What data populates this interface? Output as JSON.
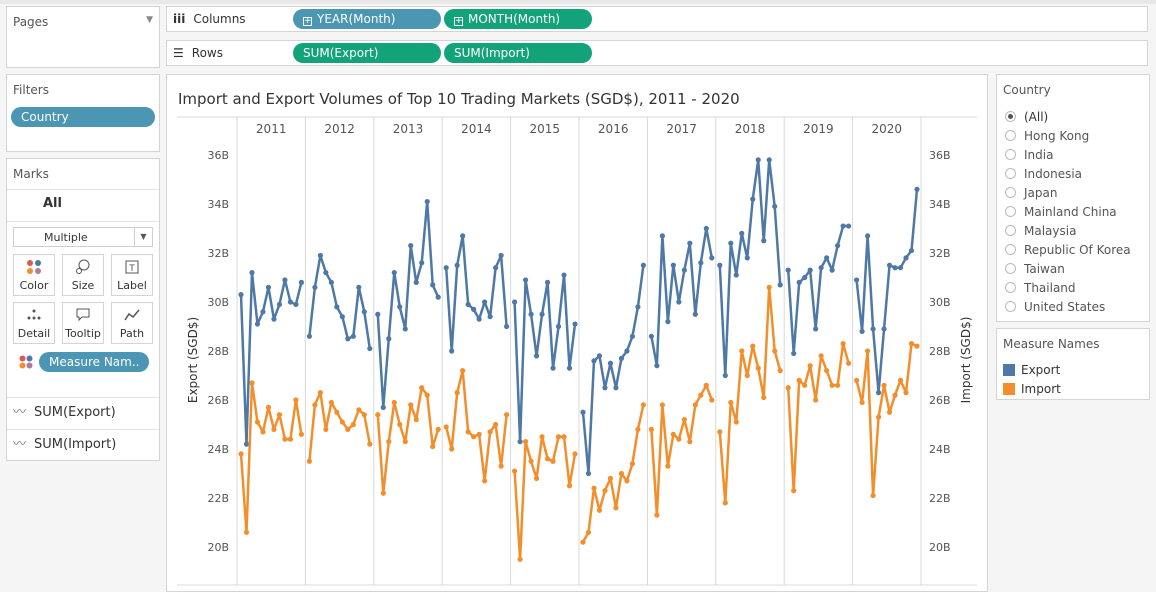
{
  "pages": {
    "title": "Pages"
  },
  "filters": {
    "title": "Filters",
    "pill": "Country"
  },
  "marks": {
    "title": "Marks",
    "all": "All",
    "mark_type": "Multiple",
    "buttons": [
      {
        "label": "Color",
        "icon": "color-dots-icon"
      },
      {
        "label": "Size",
        "icon": "size-icon"
      },
      {
        "label": "Label",
        "icon": "label-icon"
      },
      {
        "label": "Detail",
        "icon": "detail-icon"
      },
      {
        "label": "Tooltip",
        "icon": "tooltip-icon"
      },
      {
        "label": "Path",
        "icon": "path-icon"
      }
    ],
    "color_pill": "Measure Nam..",
    "measures": [
      "SUM(Export)",
      "SUM(Import)"
    ]
  },
  "columns": {
    "label": "Columns",
    "pills": [
      "YEAR(Month)",
      "MONTH(Month)"
    ]
  },
  "rows": {
    "label": "Rows",
    "pills": [
      "SUM(Export)",
      "SUM(Import)"
    ]
  },
  "country_filter": {
    "title": "Country",
    "options": [
      "(All)",
      "Hong Kong",
      "India",
      "Indonesia",
      "Japan",
      "Mainland China",
      "Malaysia",
      "Republic Of Korea",
      "Taiwan",
      "Thailand",
      "United States"
    ],
    "selected": "(All)"
  },
  "legend": {
    "title": "Measure Names",
    "items": [
      {
        "label": "Export",
        "color": "#4e79a7"
      },
      {
        "label": "Import",
        "color": "#f28e2b"
      }
    ]
  },
  "chart_data": {
    "type": "line",
    "title": "Import and Export Volumes of Top 10 Trading Markets (SGD$), 2011 - 2020",
    "ylabel_left": "Export (SGD$)",
    "ylabel_right": "Import (SGD$)",
    "y_ticks": [
      "20B",
      "22B",
      "24B",
      "26B",
      "28B",
      "30B",
      "32B",
      "34B",
      "36B"
    ],
    "ylim_billions": [
      19,
      37
    ],
    "years": [
      "2011",
      "2012",
      "2013",
      "2014",
      "2015",
      "2016",
      "2017",
      "2018",
      "2019",
      "2020"
    ],
    "series": [
      {
        "name": "Export",
        "color": "#4e79a7",
        "values_by_year": [
          [
            30.3,
            24.2,
            31.2,
            29.1,
            29.6,
            30.6,
            29.3,
            29.9,
            30.9,
            30.0,
            29.9,
            30.8
          ],
          [
            28.6,
            30.6,
            31.9,
            31.2,
            30.8,
            29.8,
            29.4,
            28.5,
            28.6,
            30.6,
            29.6,
            28.1
          ],
          [
            29.5,
            25.7,
            28.5,
            31.2,
            29.8,
            28.9,
            32.3,
            30.8,
            31.6,
            34.1,
            30.7,
            30.2
          ],
          [
            31.4,
            28.0,
            31.5,
            32.7,
            29.9,
            29.7,
            29.3,
            30.0,
            29.4,
            31.4,
            31.9,
            29.0
          ],
          [
            30.0,
            24.3,
            30.9,
            29.5,
            27.8,
            29.5,
            30.8,
            27.3,
            29.0,
            31.1,
            27.3,
            29.1
          ],
          [
            25.5,
            23.0,
            27.6,
            27.8,
            26.5,
            27.5,
            26.5,
            27.7,
            28.0,
            28.6,
            29.8,
            31.5
          ],
          [
            28.6,
            27.4,
            32.7,
            29.2,
            31.5,
            30.0,
            31.3,
            32.4,
            29.5,
            31.6,
            33.0,
            31.8
          ],
          [
            31.5,
            27.0,
            32.4,
            31.1,
            32.8,
            31.8,
            34.2,
            35.8,
            32.5,
            35.8,
            33.9,
            30.7
          ],
          [
            31.3,
            27.9,
            30.8,
            31.0,
            31.3,
            28.9,
            31.4,
            31.8,
            31.3,
            32.3,
            33.1,
            33.1
          ],
          [
            30.9,
            28.8,
            32.7,
            28.9,
            26.3,
            28.9,
            31.5,
            31.4,
            31.4,
            31.8,
            32.1,
            34.6
          ]
        ]
      },
      {
        "name": "Import",
        "color": "#f28e2b",
        "values_by_year": [
          [
            23.8,
            20.6,
            26.7,
            25.1,
            24.7,
            25.7,
            24.8,
            25.4,
            24.4,
            24.4,
            26.0,
            24.6
          ],
          [
            23.5,
            25.8,
            26.3,
            24.8,
            25.9,
            25.5,
            25.1,
            24.8,
            25.0,
            25.6,
            25.4,
            24.2
          ],
          [
            25.4,
            22.2,
            24.3,
            25.9,
            25.0,
            24.3,
            25.8,
            25.2,
            26.5,
            26.2,
            24.1,
            24.8
          ],
          [
            24.9,
            24.0,
            26.3,
            27.2,
            24.7,
            24.5,
            24.6,
            22.7,
            24.7,
            25.0,
            23.3,
            25.4
          ],
          [
            23.1,
            19.5,
            24.3,
            23.5,
            22.8,
            24.5,
            23.6,
            23.5,
            24.5,
            24.5,
            22.5,
            23.8
          ],
          [
            20.2,
            20.6,
            22.4,
            21.5,
            22.3,
            22.8,
            21.6,
            23.0,
            22.7,
            23.4,
            24.8,
            25.8
          ],
          [
            24.8,
            21.3,
            25.8,
            23.3,
            24.6,
            24.4,
            25.2,
            24.3,
            25.8,
            26.2,
            26.6,
            26.0
          ],
          [
            24.7,
            21.8,
            25.9,
            25.1,
            28.0,
            27.0,
            28.2,
            27.3,
            26.1,
            30.6,
            28.0,
            27.2
          ],
          [
            26.5,
            22.3,
            26.8,
            26.6,
            27.4,
            26.0,
            27.8,
            27.2,
            26.6,
            26.6,
            28.3,
            27.5
          ],
          [
            26.8,
            25.9,
            28.0,
            22.1,
            25.3,
            26.6,
            25.5,
            26.2,
            26.8,
            26.3,
            28.3,
            28.2
          ]
        ]
      }
    ]
  }
}
